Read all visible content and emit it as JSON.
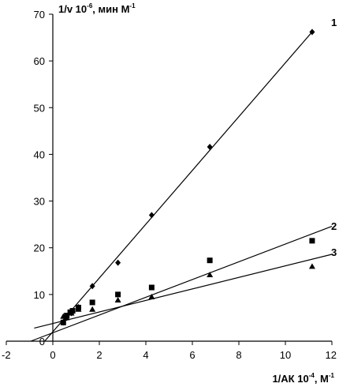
{
  "chart_data": {
    "type": "scatter",
    "ylabel": {
      "prefix": "1/v 10",
      "exp": "-6",
      "suffix": ", мин М",
      "unit_exp": "-1"
    },
    "xlabel": {
      "prefix": "1/АК 10",
      "exp": "-4",
      "suffix": ", М",
      "unit_exp": "-1"
    },
    "xlim": [
      -2,
      12
    ],
    "ylim": [
      0,
      70
    ],
    "x_ticks": [
      "-2",
      "0",
      "2",
      "4",
      "6",
      "8",
      "10",
      "12"
    ],
    "y_ticks": [
      "0",
      "10",
      "20",
      "30",
      "40",
      "50",
      "60",
      "70"
    ],
    "grid": false,
    "series": [
      {
        "name": "1",
        "marker": "diamond",
        "points": [
          {
            "x": 0.45,
            "y": 4.0
          },
          {
            "x": 0.6,
            "y": 5.0
          },
          {
            "x": 0.8,
            "y": 6.0
          },
          {
            "x": 1.1,
            "y": 7.3
          },
          {
            "x": 1.7,
            "y": 11.8
          },
          {
            "x": 2.8,
            "y": 16.8
          },
          {
            "x": 4.25,
            "y": 27.0
          },
          {
            "x": 6.75,
            "y": 41.6
          },
          {
            "x": 11.15,
            "y": 66.2
          }
        ],
        "fit": {
          "x0": -0.35,
          "y0": 0.0,
          "x1": 11.2,
          "y1": 66.5
        }
      },
      {
        "name": "2",
        "marker": "square",
        "points": [
          {
            "x": 0.45,
            "y": 4.0
          },
          {
            "x": 0.6,
            "y": 5.5
          },
          {
            "x": 0.75,
            "y": 6.2
          },
          {
            "x": 0.85,
            "y": 6.5
          },
          {
            "x": 1.1,
            "y": 7.2
          },
          {
            "x": 1.7,
            "y": 8.3
          },
          {
            "x": 2.8,
            "y": 10.0
          },
          {
            "x": 4.25,
            "y": 11.5
          },
          {
            "x": 6.75,
            "y": 17.3
          },
          {
            "x": 11.15,
            "y": 21.5
          }
        ],
        "fit": {
          "x0": -0.95,
          "y0": 0.0,
          "x1": 12.0,
          "y1": 24.6
        }
      },
      {
        "name": "3",
        "marker": "triangle",
        "points": [
          {
            "x": 0.45,
            "y": 5.3
          },
          {
            "x": 0.6,
            "y": 5.0
          },
          {
            "x": 0.8,
            "y": 6.0
          },
          {
            "x": 1.1,
            "y": 6.8
          },
          {
            "x": 1.7,
            "y": 6.8
          },
          {
            "x": 2.8,
            "y": 8.8
          },
          {
            "x": 4.25,
            "y": 9.5
          },
          {
            "x": 6.75,
            "y": 14.2
          },
          {
            "x": 11.15,
            "y": 16.0
          }
        ],
        "fit": {
          "x0": -0.8,
          "y0": 2.8,
          "x1": 12.0,
          "y1": 18.6
        }
      }
    ]
  }
}
